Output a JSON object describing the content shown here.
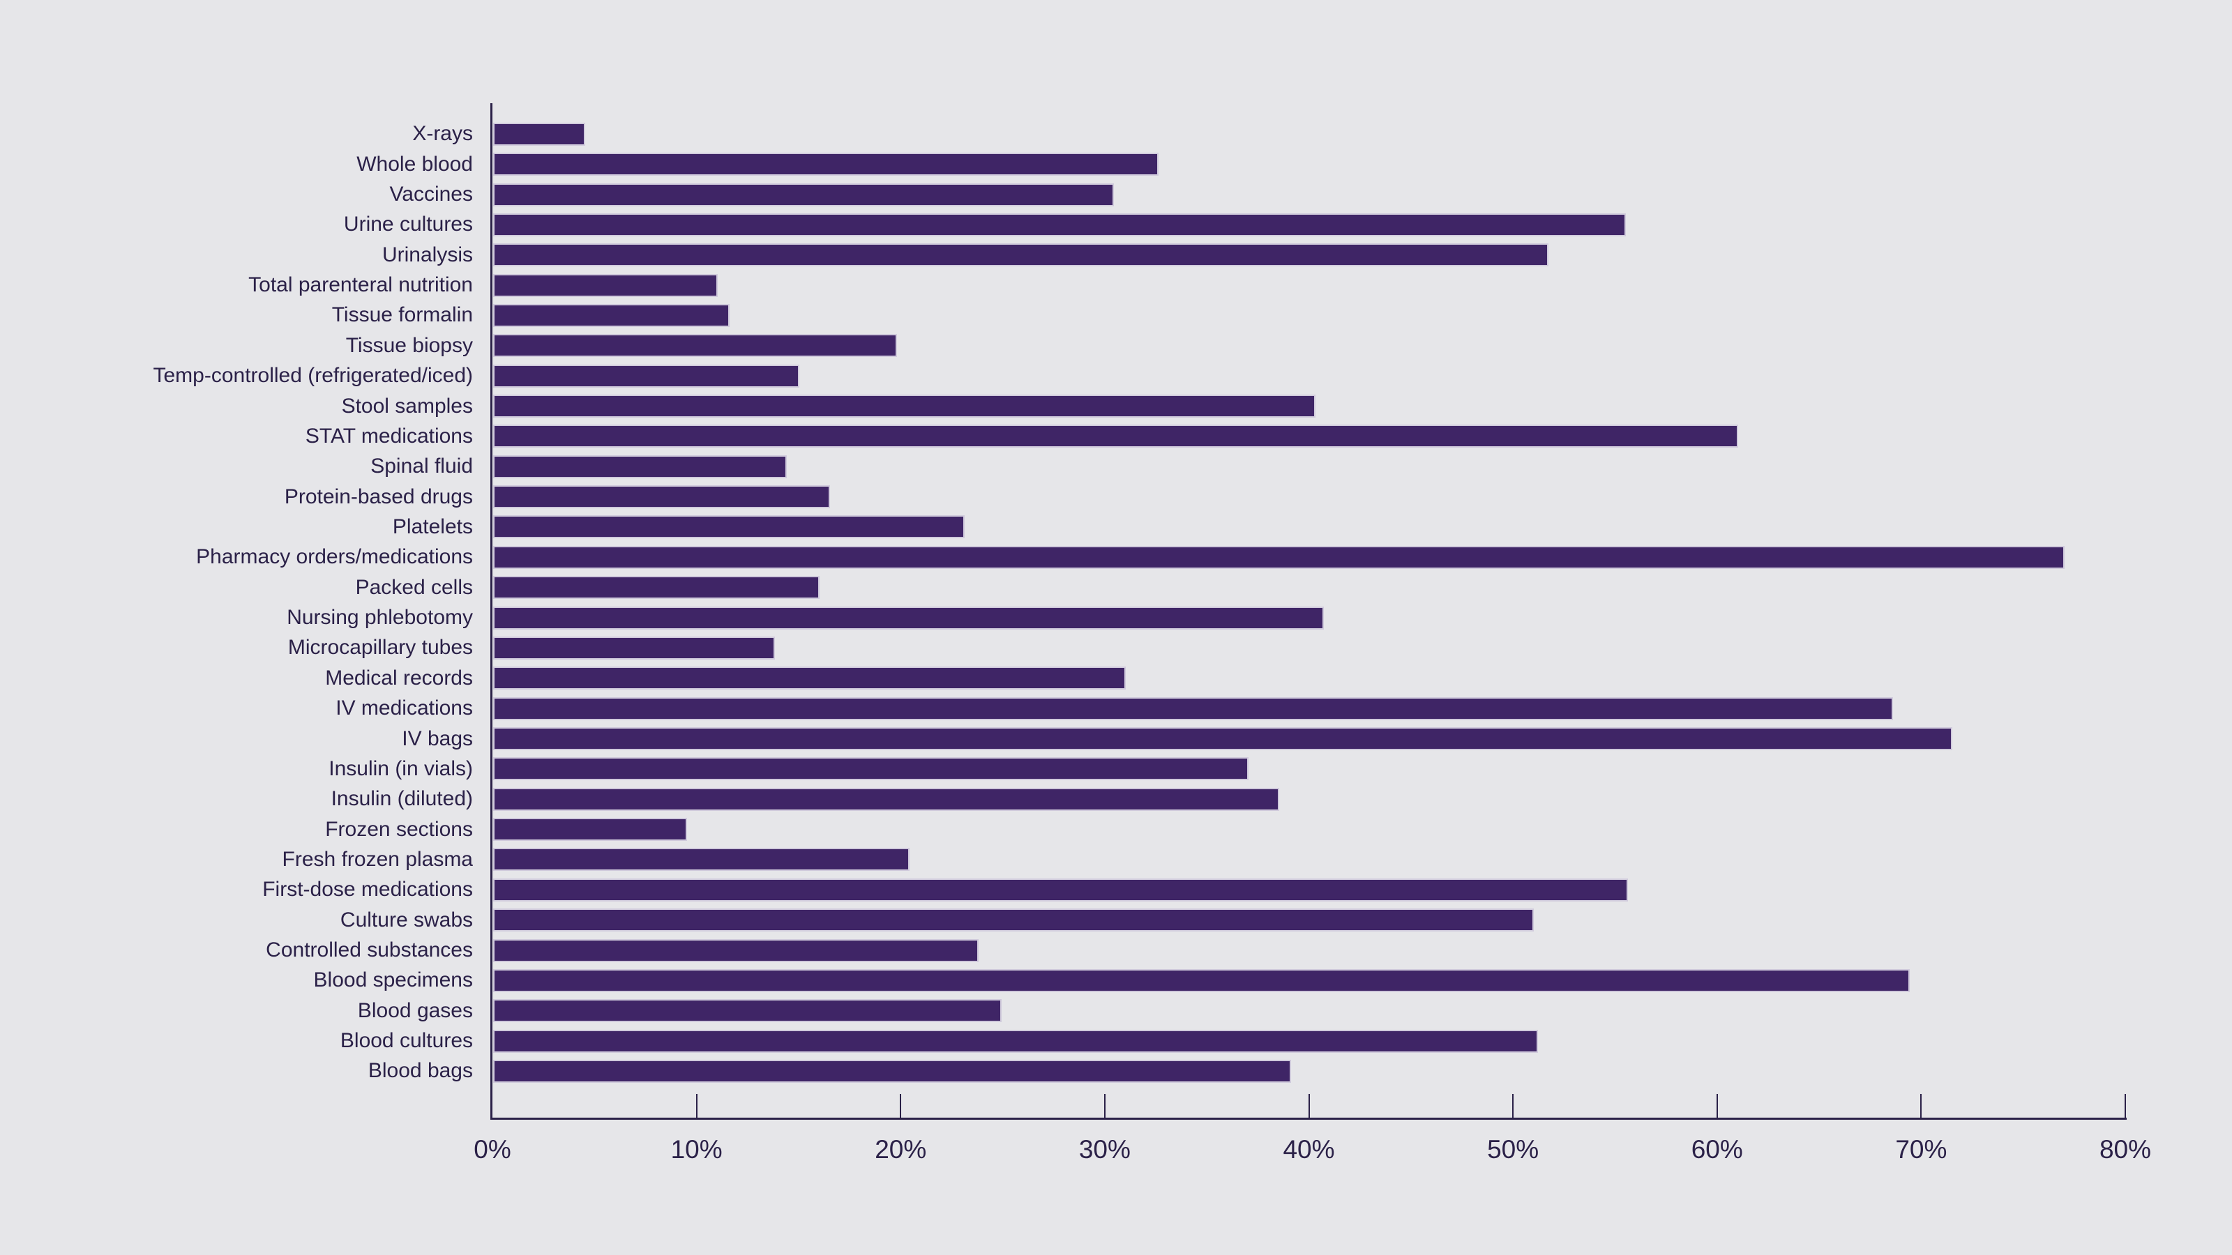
{
  "chart_data": {
    "type": "bar",
    "orientation": "horizontal",
    "title": "",
    "xlabel": "",
    "ylabel": "",
    "unit": "%",
    "xlim": [
      0,
      80
    ],
    "x_tick_values": [
      0,
      10,
      20,
      30,
      40,
      50,
      60,
      70,
      80
    ],
    "x_tick_labels": [
      "0%",
      "10%",
      "20%",
      "30%",
      "40%",
      "50%",
      "60%",
      "70%",
      "80%"
    ],
    "grid": false,
    "legend": "none",
    "categories": [
      "X-rays",
      "Whole blood",
      "Vaccines",
      "Urine cultures",
      "Urinalysis",
      "Total parenteral nutrition",
      "Tissue formalin",
      "Tissue biopsy",
      "Temp-controlled (refrigerated/iced)",
      "Stool samples",
      "STAT medications",
      "Spinal fluid",
      "Protein-based drugs",
      "Platelets",
      "Pharmacy orders/medications",
      "Packed cells",
      "Nursing phlebotomy",
      "Microcapillary tubes",
      "Medical records",
      "IV medications",
      "IV bags",
      "Insulin (in vials)",
      "Insulin (diluted)",
      "Frozen sections",
      "Fresh frozen plasma",
      "First-dose medications",
      "Culture swabs",
      "Controlled substances",
      "Blood specimens",
      "Blood gases",
      "Blood cultures",
      "Blood bags"
    ],
    "values": [
      4.5,
      32.6,
      30.4,
      55.5,
      51.7,
      11.0,
      11.6,
      19.8,
      15.0,
      40.3,
      61.0,
      14.4,
      16.5,
      23.1,
      77.0,
      16.0,
      40.7,
      13.8,
      31.0,
      68.6,
      71.5,
      37.0,
      38.5,
      9.5,
      20.4,
      55.6,
      51.0,
      23.8,
      69.4,
      24.9,
      51.2,
      39.1
    ],
    "colors": {
      "background": "#e6e6e9",
      "bar_fill": "#3f2566",
      "bar_border": "#d0cadc",
      "axis": "#2b2148",
      "text": "#2b2148"
    }
  }
}
